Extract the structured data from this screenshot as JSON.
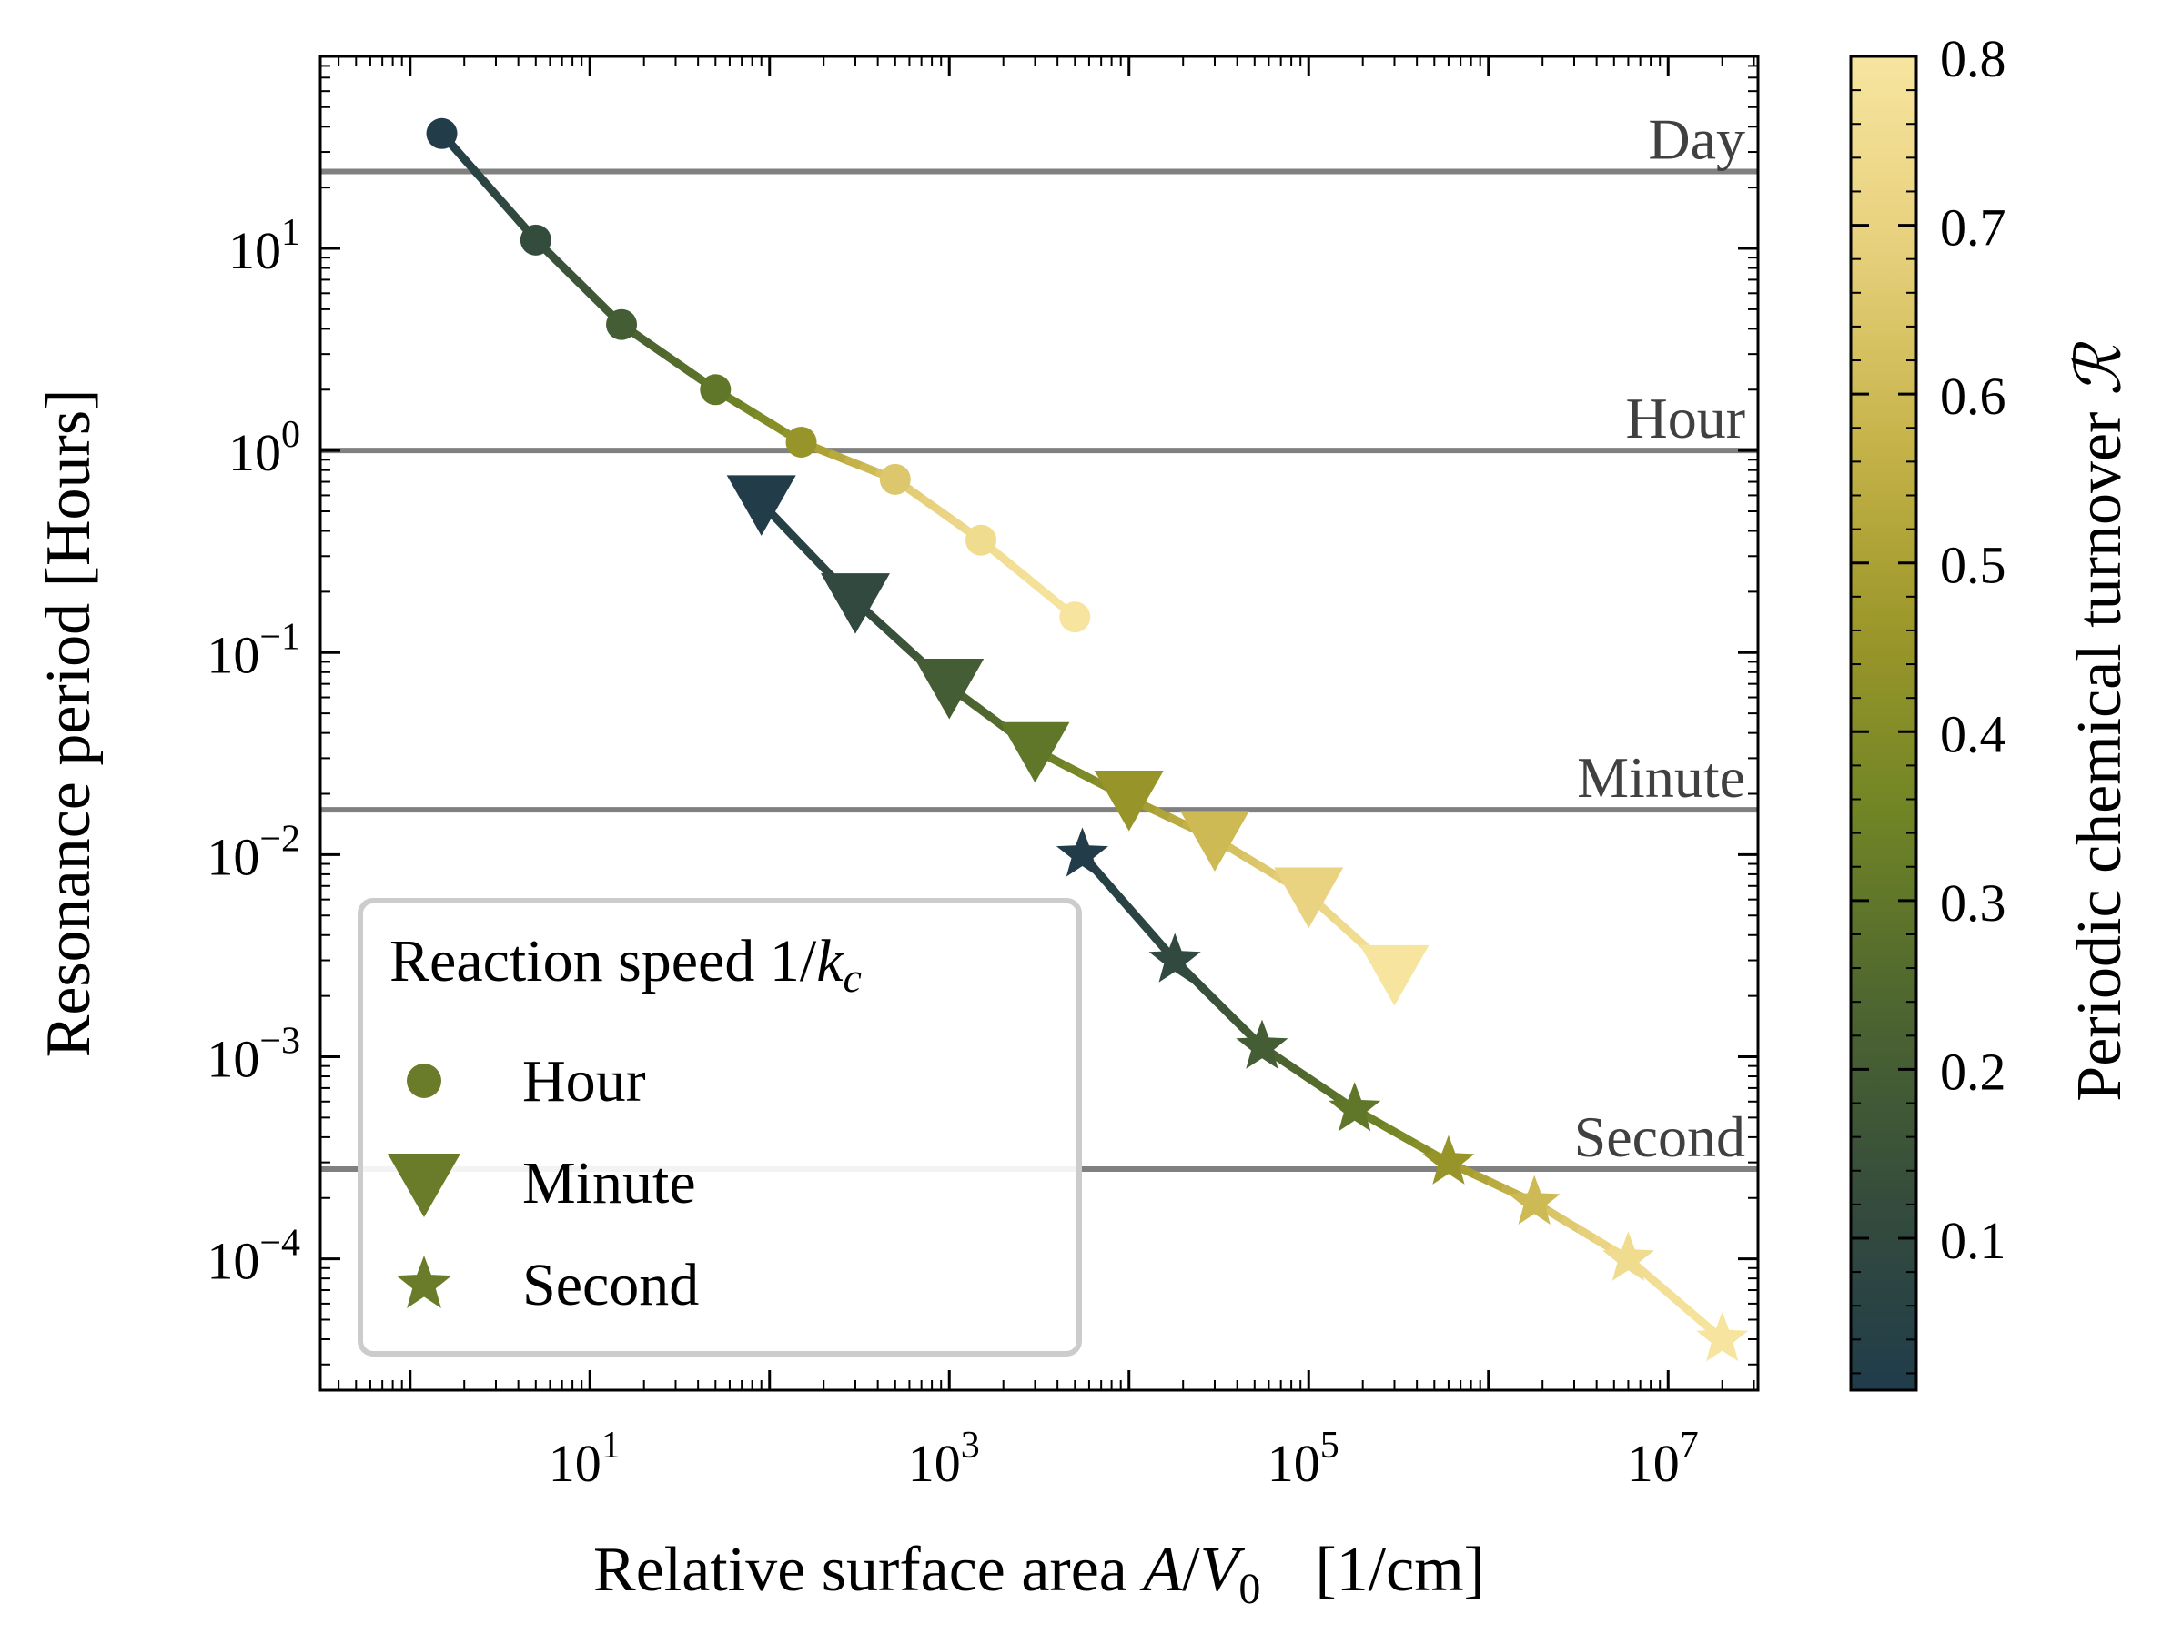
{
  "chart_data": {
    "type": "line",
    "xscale": "log",
    "yscale": "log",
    "xlim_log10": [
      -0.5,
      7.5
    ],
    "ylim_log10": [
      -4.65,
      1.95
    ],
    "xlabel": "Relative surface area A/V0   [1/cm]",
    "xlabel_parts": {
      "main": "Relative surface area ",
      "A": "A",
      "slash": "/",
      "V": "V",
      "sub": "0",
      "unit": "[1/cm]"
    },
    "ylabel": "Resonance period [Hours]",
    "x_ticks": [
      {
        "base": "10",
        "exp": "1",
        "log10": 1
      },
      {
        "base": "10",
        "exp": "3",
        "log10": 3
      },
      {
        "base": "10",
        "exp": "5",
        "log10": 5
      },
      {
        "base": "10",
        "exp": "7",
        "log10": 7
      }
    ],
    "y_ticks": [
      {
        "base": "10",
        "exp": "1",
        "log10": 1
      },
      {
        "base": "10",
        "exp": "0",
        "log10": 0
      },
      {
        "base": "10",
        "exp": "−1",
        "log10": -1
      },
      {
        "base": "10",
        "exp": "−2",
        "log10": -2
      },
      {
        "base": "10",
        "exp": "−3",
        "log10": -3
      },
      {
        "base": "10",
        "exp": "−4",
        "log10": -4
      }
    ],
    "reference_lines": [
      {
        "label": "Day",
        "y_hours": 24
      },
      {
        "label": "Hour",
        "y_hours": 1
      },
      {
        "label": "Minute",
        "y_hours": 0.016667
      },
      {
        "label": "Second",
        "y_hours": 0.000278
      }
    ],
    "series": [
      {
        "name": "Hour",
        "marker": "circle",
        "x": [
          1.5,
          5,
          15,
          50,
          150,
          500,
          1500,
          5000
        ],
        "y": [
          37,
          11,
          4.2,
          2.0,
          1.1,
          0.72,
          0.36,
          0.15
        ],
        "turnover": [
          0.02,
          0.12,
          0.2,
          0.3,
          0.45,
          0.65,
          0.75,
          0.8
        ]
      },
      {
        "name": "Minute",
        "marker": "triangle-down",
        "x": [
          90,
          300,
          1000,
          3000,
          10000,
          30000,
          100000,
          300000
        ],
        "y": [
          0.55,
          0.18,
          0.068,
          0.033,
          0.019,
          0.012,
          0.0063,
          0.0026
        ],
        "turnover": [
          0.02,
          0.1,
          0.2,
          0.3,
          0.45,
          0.6,
          0.7,
          0.8
        ]
      },
      {
        "name": "Second",
        "marker": "star",
        "x": [
          5500,
          18000,
          55000,
          180000,
          600000,
          1800000,
          6000000,
          20000000
        ],
        "y": [
          0.01,
          0.003,
          0.00112,
          0.00055,
          0.0003,
          0.00019,
          0.0001,
          4e-05
        ],
        "turnover": [
          0.02,
          0.1,
          0.2,
          0.3,
          0.45,
          0.6,
          0.75,
          0.8
        ]
      }
    ],
    "legend": {
      "title_main": "Reaction speed 1/",
      "title_k": "k",
      "title_sub": "c",
      "position": "lower-left",
      "marker_color": "#6a7c2a",
      "entries": [
        "Hour",
        "Minute",
        "Second"
      ]
    },
    "colorbar": {
      "label": "Periodic chemical turnover",
      "symbol": "ℛ",
      "range": [
        0.01,
        0.8
      ],
      "ticks": [
        "0.1",
        "0.2",
        "0.3",
        "0.4",
        "0.5",
        "0.6",
        "0.7",
        "0.8"
      ],
      "tick_values": [
        0.1,
        0.2,
        0.3,
        0.4,
        0.5,
        0.6,
        0.7,
        0.8
      ],
      "colormap": [
        "#203c4a",
        "#354c3c",
        "#4d6530",
        "#6f8425",
        "#9c972a",
        "#c7b44a",
        "#e7d07c",
        "#f7e59f"
      ]
    }
  }
}
